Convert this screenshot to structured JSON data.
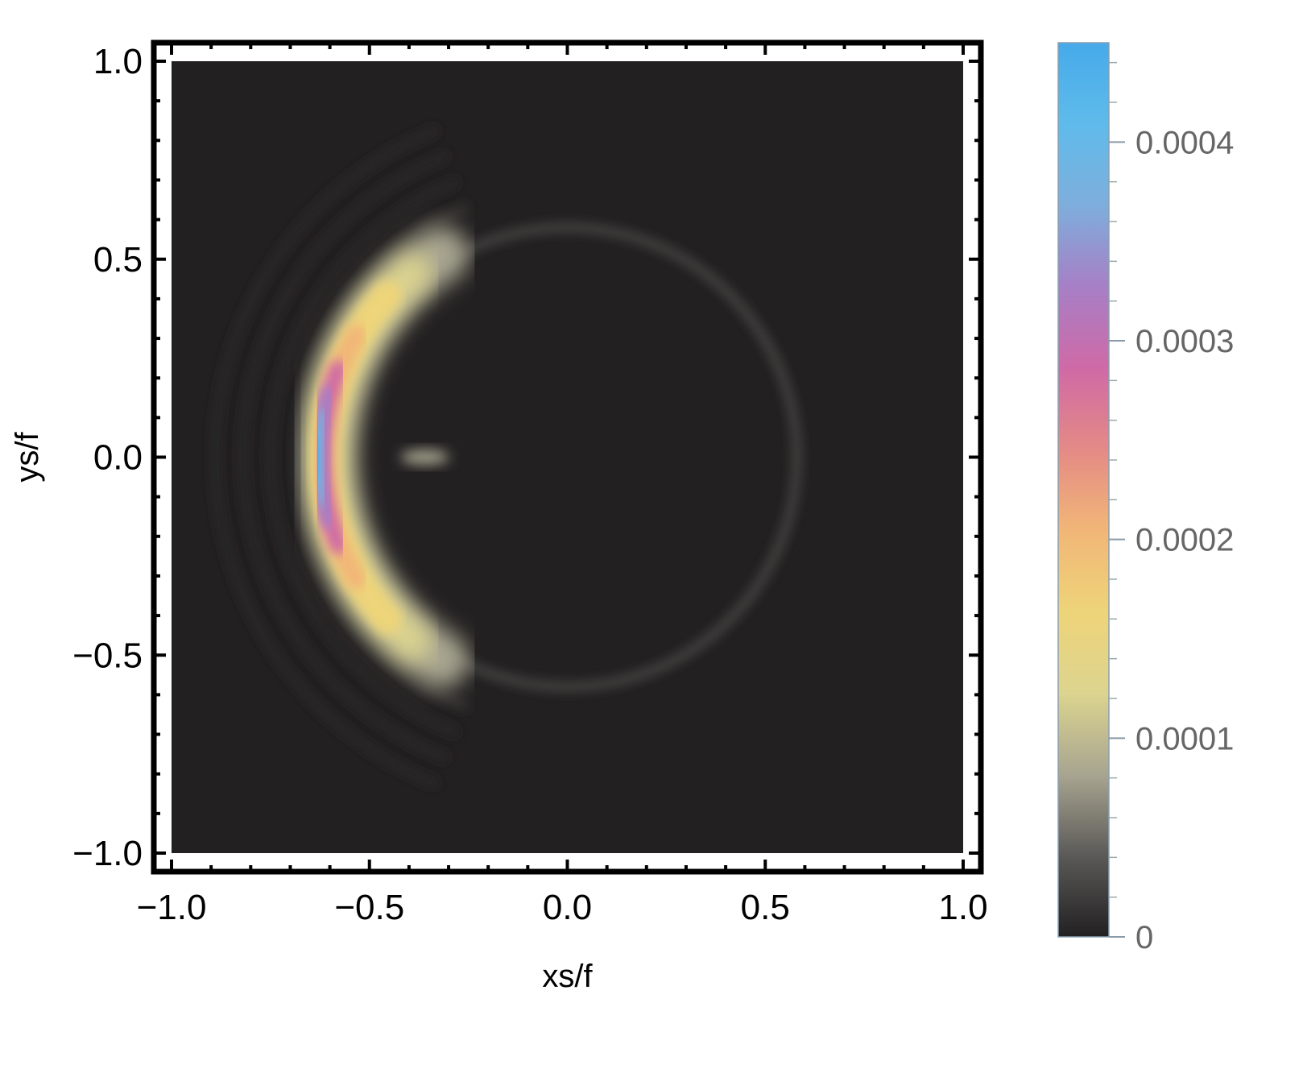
{
  "chart_data": {
    "type": "heatmap",
    "xlabel": "xs/f",
    "ylabel": "ys/f",
    "xlim": [
      -1.0,
      1.0
    ],
    "ylim": [
      -1.0,
      1.0
    ],
    "x_ticks": [
      "−1.0",
      "−0.5",
      "0.0",
      "0.5",
      "1.0"
    ],
    "y_ticks": [
      "−1.0",
      "−0.5",
      "0.0",
      "0.5",
      "1.0"
    ],
    "colorbar": {
      "min": 0,
      "max": 0.00045,
      "tick_labels": [
        "0",
        "0.0001",
        "0.0002",
        "0.0003",
        "0.0004"
      ],
      "tick_values": [
        0,
        0.0001,
        0.0002,
        0.0003,
        0.0004
      ],
      "colors": [
        "#222021",
        "#5c5a58",
        "#a8a590",
        "#dcd48f",
        "#eed479",
        "#f1b677",
        "#e48a86",
        "#cf6aa6",
        "#a77fc6",
        "#7eaedc",
        "#5fbbeb",
        "#46aaea"
      ]
    },
    "features": {
      "primary_arc": {
        "center": [
          0.0,
          0.0
        ],
        "radius": 0.6,
        "peak_x": -0.6,
        "peak_value": 0.00045
      },
      "faint_ring": {
        "center": [
          0.0,
          0.0
        ],
        "radius": 0.58,
        "value": 3e-05
      },
      "spot": {
        "x": -0.36,
        "y": 0.0,
        "value": 7e-05
      }
    }
  }
}
